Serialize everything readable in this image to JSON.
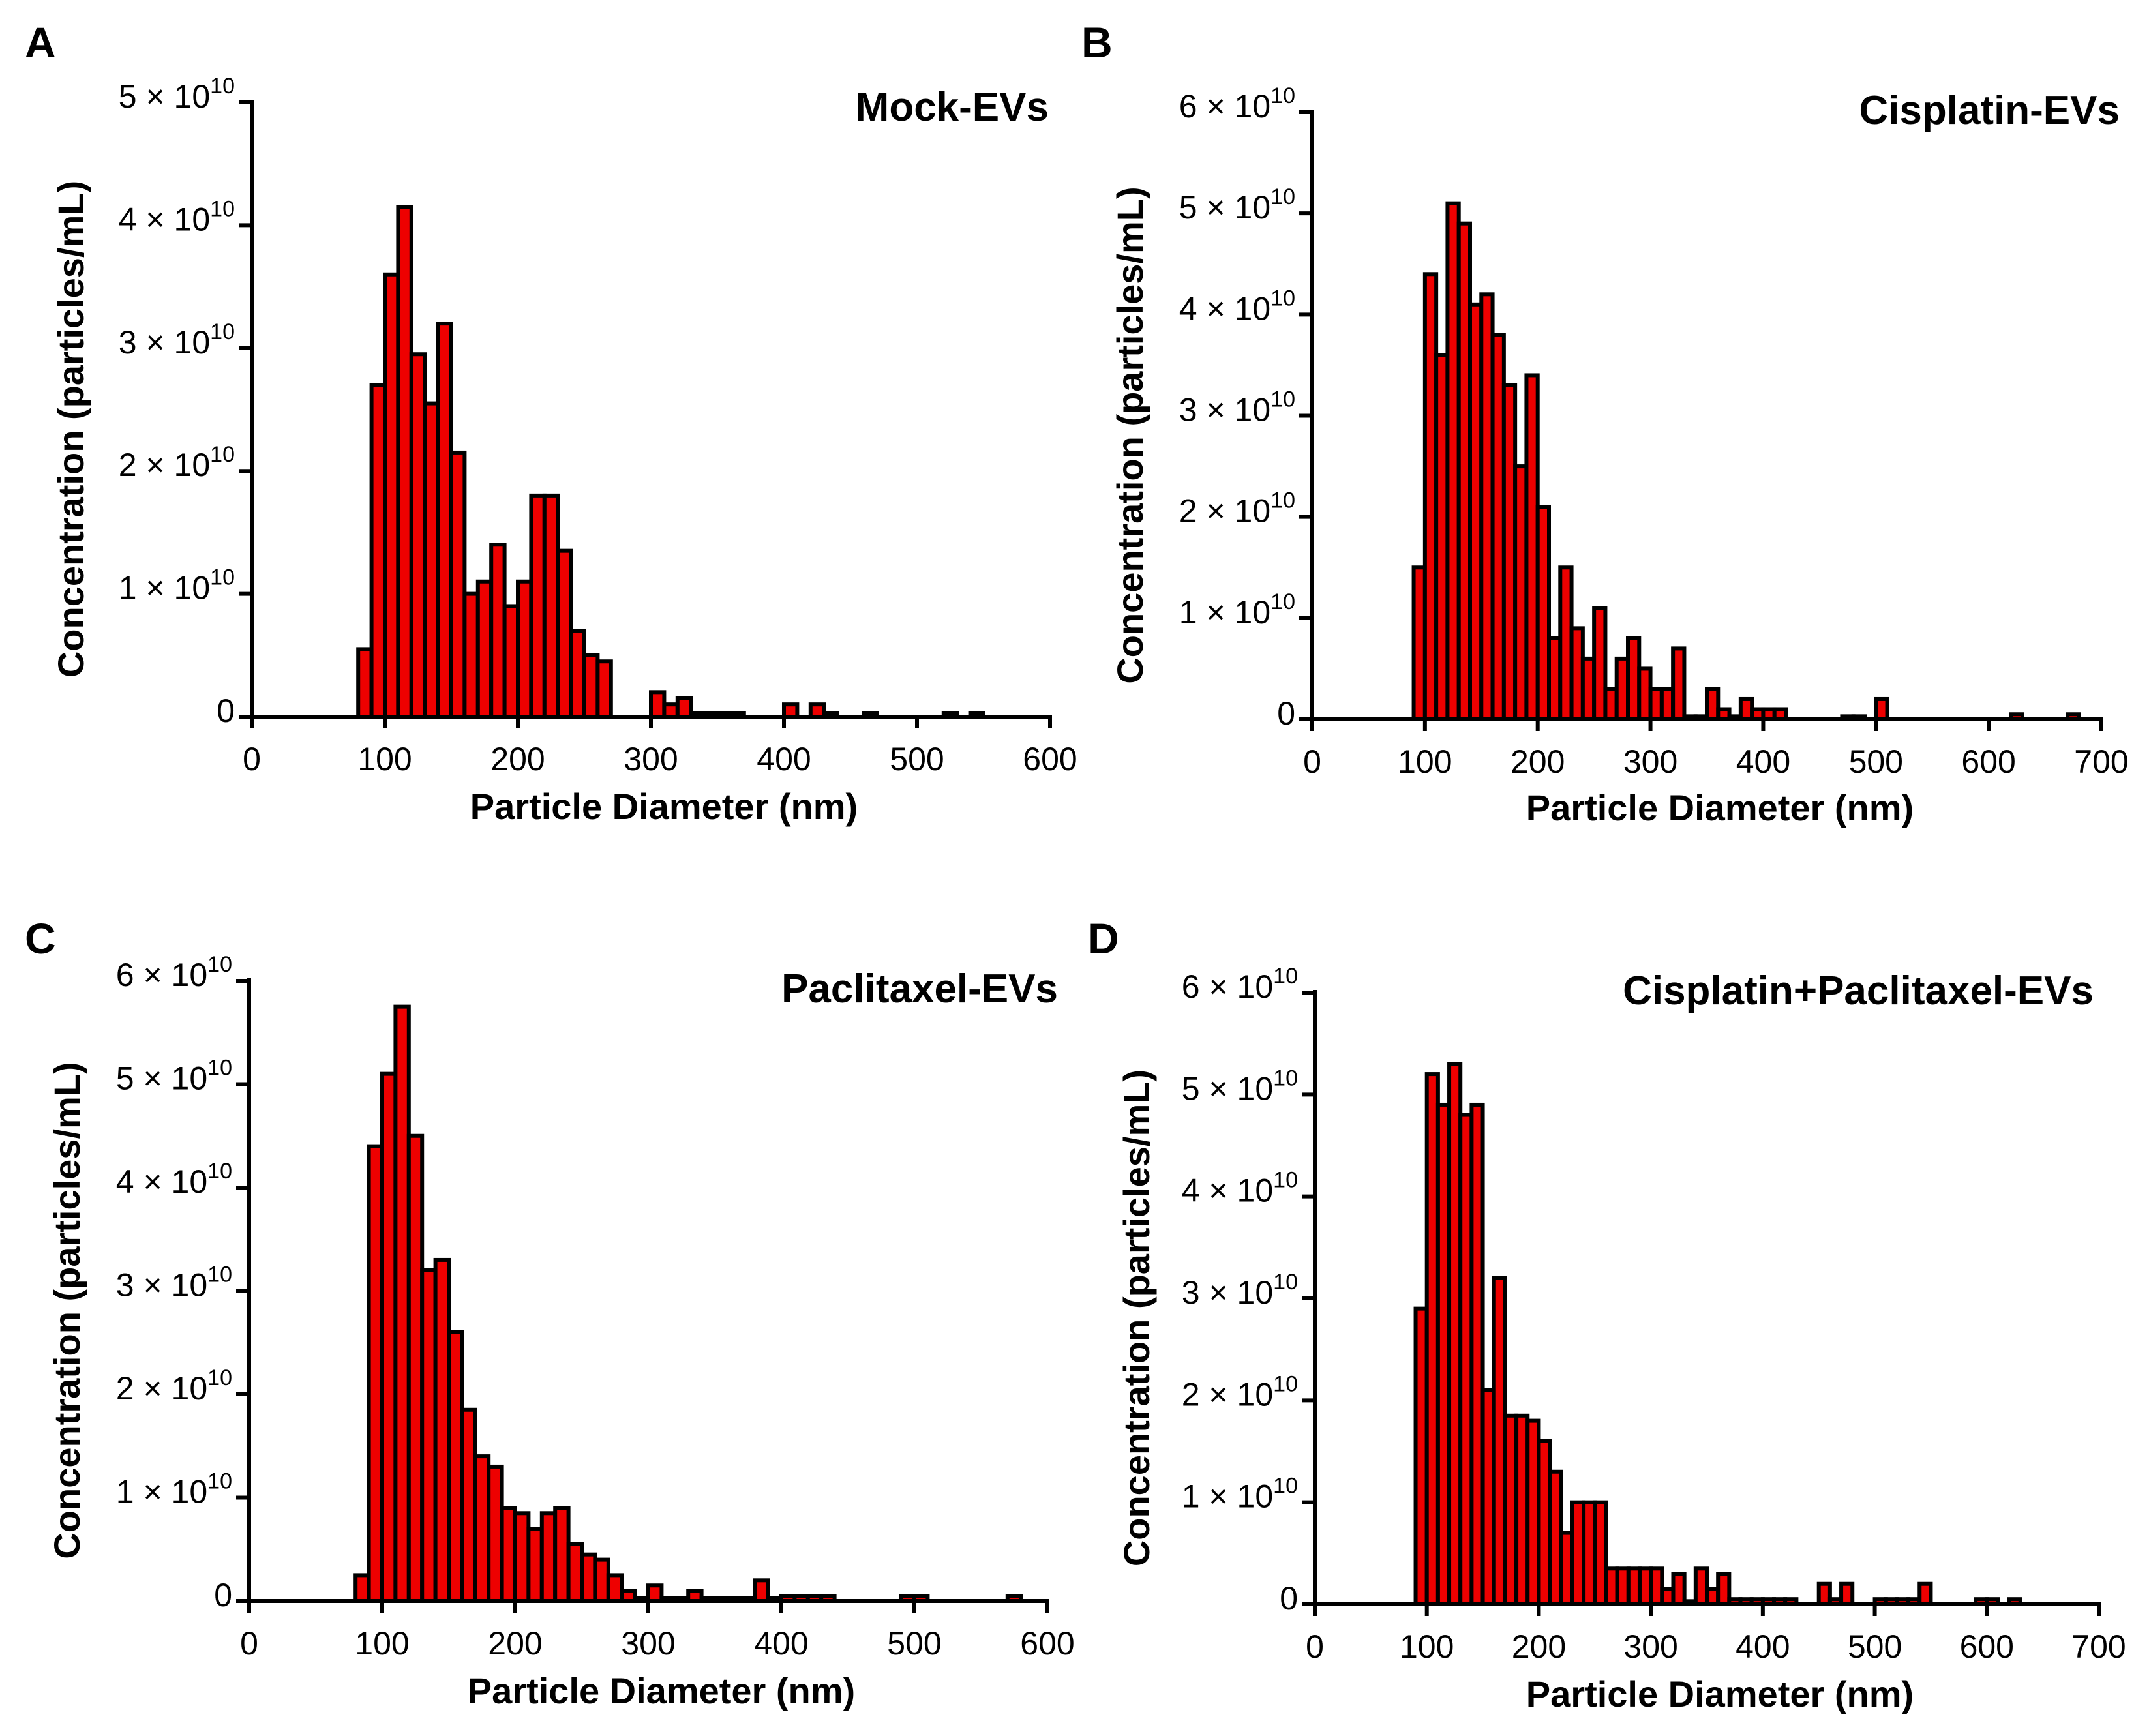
{
  "figure": {
    "bar_color": "#ee0000",
    "outline_color": "#000000"
  },
  "chart_data": [
    {
      "type": "bar",
      "panel": "A",
      "title": "Mock-EVs",
      "xlabel": "Particle Diameter (nm)",
      "ylabel": "Concentration (particles/mL)",
      "xlim": [
        0,
        600
      ],
      "ylim": [
        0,
        5
      ],
      "xticks": [
        "0",
        "100",
        "200",
        "300",
        "400",
        "500",
        "600"
      ],
      "yticks": [
        {
          "mant": "0",
          "exp": ""
        },
        {
          "mant": "1 × 10",
          "exp": "10"
        },
        {
          "mant": "2 × 10",
          "exp": "10"
        },
        {
          "mant": "3 × 10",
          "exp": "10"
        },
        {
          "mant": "4 × 10",
          "exp": "10"
        },
        {
          "mant": "5 × 10",
          "exp": "10"
        }
      ],
      "y_unit": "1e10 particles/mL",
      "bin_width": 10,
      "bins_start": [
        80,
        90,
        100,
        110,
        120,
        130,
        140,
        150,
        160,
        170,
        180,
        190,
        200,
        210,
        220,
        230,
        240,
        250,
        260,
        270,
        280,
        290,
        300,
        310,
        320,
        330,
        340,
        350,
        360,
        370,
        380,
        390,
        400,
        410,
        420,
        430,
        440,
        450,
        460,
        470,
        480,
        490,
        500,
        510,
        520,
        530,
        540
      ],
      "values": [
        0.55,
        2.7,
        3.6,
        4.15,
        2.95,
        2.55,
        3.2,
        2.15,
        1.0,
        1.1,
        1.4,
        0.9,
        1.1,
        1.8,
        1.8,
        1.35,
        0.7,
        0.5,
        0.45,
        0,
        0,
        0,
        0.2,
        0.1,
        0.15,
        0.03,
        0.03,
        0.03,
        0.03,
        0,
        0,
        0,
        0.1,
        0,
        0.1,
        0.03,
        0,
        0,
        0.03,
        0,
        0,
        0,
        0,
        0,
        0.03,
        0,
        0.03
      ]
    },
    {
      "type": "bar",
      "panel": "B",
      "title": "Cisplatin-EVs",
      "xlabel": "Particle Diameter (nm)",
      "ylabel": "Concentration (particles/mL)",
      "xlim": [
        0,
        700
      ],
      "ylim": [
        0,
        6
      ],
      "xticks": [
        "0",
        "100",
        "200",
        "300",
        "400",
        "500",
        "600",
        "700"
      ],
      "yticks": [
        {
          "mant": "0",
          "exp": ""
        },
        {
          "mant": "1 × 10",
          "exp": "10"
        },
        {
          "mant": "2 × 10",
          "exp": "10"
        },
        {
          "mant": "3 × 10",
          "exp": "10"
        },
        {
          "mant": "4 × 10",
          "exp": "10"
        },
        {
          "mant": "5 × 10",
          "exp": "10"
        },
        {
          "mant": "6 × 10",
          "exp": "10"
        }
      ],
      "y_unit": "1e10 particles/mL",
      "bin_width": 10,
      "bins_start": [
        90,
        100,
        110,
        120,
        130,
        140,
        150,
        160,
        170,
        180,
        190,
        200,
        210,
        220,
        230,
        240,
        250,
        260,
        270,
        280,
        290,
        300,
        310,
        320,
        330,
        340,
        350,
        360,
        370,
        380,
        390,
        400,
        410,
        420,
        430,
        440,
        450,
        460,
        470,
        480,
        490,
        500,
        510,
        520,
        530,
        540,
        550,
        560,
        570,
        580,
        590,
        600,
        610,
        620,
        630,
        640,
        650,
        660,
        670
      ],
      "values": [
        1.5,
        4.4,
        3.6,
        5.1,
        4.9,
        4.1,
        4.2,
        3.8,
        3.3,
        2.5,
        3.4,
        2.1,
        0.8,
        1.5,
        0.9,
        0.6,
        1.1,
        0.3,
        0.6,
        0.8,
        0.5,
        0.3,
        0.3,
        0.7,
        0.03,
        0.03,
        0.3,
        0.1,
        0.03,
        0.2,
        0.1,
        0.1,
        0.1,
        0,
        0,
        0,
        0,
        0,
        0.03,
        0.03,
        0,
        0.2,
        0,
        0,
        0,
        0,
        0,
        0,
        0,
        0,
        0,
        0,
        0,
        0.05,
        0,
        0,
        0,
        0,
        0.05
      ]
    },
    {
      "type": "bar",
      "panel": "C",
      "title": "Paclitaxel-EVs",
      "xlabel": "Particle Diameter (nm)",
      "ylabel": "Concentration (particles/mL)",
      "xlim": [
        0,
        600
      ],
      "ylim": [
        0,
        6
      ],
      "xticks": [
        "0",
        "100",
        "200",
        "300",
        "400",
        "500",
        "600"
      ],
      "yticks": [
        {
          "mant": "0",
          "exp": ""
        },
        {
          "mant": "1 × 10",
          "exp": "10"
        },
        {
          "mant": "2 × 10",
          "exp": "10"
        },
        {
          "mant": "3 × 10",
          "exp": "10"
        },
        {
          "mant": "4 × 10",
          "exp": "10"
        },
        {
          "mant": "5 × 10",
          "exp": "10"
        },
        {
          "mant": "6 × 10",
          "exp": "10"
        }
      ],
      "y_unit": "1e10 particles/mL",
      "bin_width": 10,
      "bins_start": [
        80,
        90,
        100,
        110,
        120,
        130,
        140,
        150,
        160,
        170,
        180,
        190,
        200,
        210,
        220,
        230,
        240,
        250,
        260,
        270,
        280,
        290,
        300,
        310,
        320,
        330,
        340,
        350,
        360,
        370,
        380,
        390,
        400,
        410,
        420,
        430,
        440,
        450,
        460,
        470,
        480,
        490,
        500,
        510,
        520,
        530,
        540,
        550,
        560,
        570
      ],
      "values": [
        0.25,
        4.4,
        5.1,
        5.75,
        4.5,
        3.2,
        3.3,
        2.6,
        1.85,
        1.4,
        1.3,
        0.9,
        0.85,
        0.7,
        0.85,
        0.9,
        0.55,
        0.45,
        0.4,
        0.25,
        0.1,
        0.03,
        0.15,
        0.03,
        0.03,
        0.1,
        0.03,
        0.03,
        0.03,
        0.03,
        0.2,
        0.03,
        0.05,
        0.05,
        0.05,
        0.05,
        0,
        0,
        0,
        0,
        0,
        0.05,
        0.05,
        0,
        0,
        0,
        0,
        0,
        0,
        0.05
      ]
    },
    {
      "type": "bar",
      "panel": "D",
      "title": "Cisplatin+Paclitaxel-EVs",
      "xlabel": "Particle Diameter (nm)",
      "ylabel": "Concentration (particles/mL)",
      "xlim": [
        0,
        700
      ],
      "ylim": [
        0,
        6
      ],
      "xticks": [
        "0",
        "100",
        "200",
        "300",
        "400",
        "500",
        "600",
        "700"
      ],
      "yticks": [
        {
          "mant": "0",
          "exp": ""
        },
        {
          "mant": "1 × 10",
          "exp": "10"
        },
        {
          "mant": "2 × 10",
          "exp": "10"
        },
        {
          "mant": "3 × 10",
          "exp": "10"
        },
        {
          "mant": "4 × 10",
          "exp": "10"
        },
        {
          "mant": "5 × 10",
          "exp": "10"
        },
        {
          "mant": "6 × 10",
          "exp": "10"
        }
      ],
      "y_unit": "1e10 particles/mL",
      "bin_width": 10,
      "bins_start": [
        90,
        100,
        110,
        120,
        130,
        140,
        150,
        160,
        170,
        180,
        190,
        200,
        210,
        220,
        230,
        240,
        250,
        260,
        270,
        280,
        290,
        300,
        310,
        320,
        330,
        340,
        350,
        360,
        370,
        380,
        390,
        400,
        410,
        420,
        430,
        440,
        450,
        460,
        470,
        480,
        490,
        500,
        510,
        520,
        530,
        540,
        550,
        560,
        570,
        580,
        590,
        600,
        610,
        620
      ],
      "values": [
        2.9,
        5.2,
        4.9,
        5.3,
        4.8,
        4.9,
        2.1,
        3.2,
        1.85,
        1.85,
        1.8,
        1.6,
        1.3,
        0.7,
        1.0,
        1.0,
        1.0,
        0.35,
        0.35,
        0.35,
        0.35,
        0.35,
        0.15,
        0.3,
        0.03,
        0.35,
        0.15,
        0.3,
        0.05,
        0.05,
        0.05,
        0.05,
        0.05,
        0.05,
        0,
        0,
        0.2,
        0.05,
        0.2,
        0,
        0,
        0.05,
        0.05,
        0.05,
        0.05,
        0.2,
        0,
        0,
        0,
        0,
        0.05,
        0.05,
        0,
        0.05
      ]
    }
  ]
}
